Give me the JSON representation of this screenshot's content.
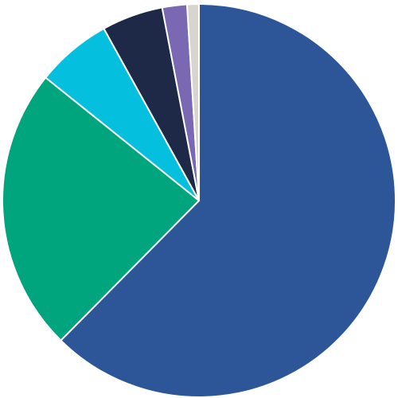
{
  "chart_data": {
    "type": "pie",
    "title": "",
    "legend": "none",
    "start_angle": "12 o'clock",
    "direction": "clockwise",
    "slices": [
      {
        "value": 64.4,
        "color": "#2c5697"
      },
      {
        "value": 24.1,
        "color": "#00a57e"
      },
      {
        "value": 6.4,
        "color": "#05bfdf"
      },
      {
        "value": 5.2,
        "color": "#1e2947"
      },
      {
        "value": 2.1,
        "color": "#7b68b3"
      },
      {
        "value": 1.0,
        "color": "#d8d5cf"
      }
    ]
  }
}
